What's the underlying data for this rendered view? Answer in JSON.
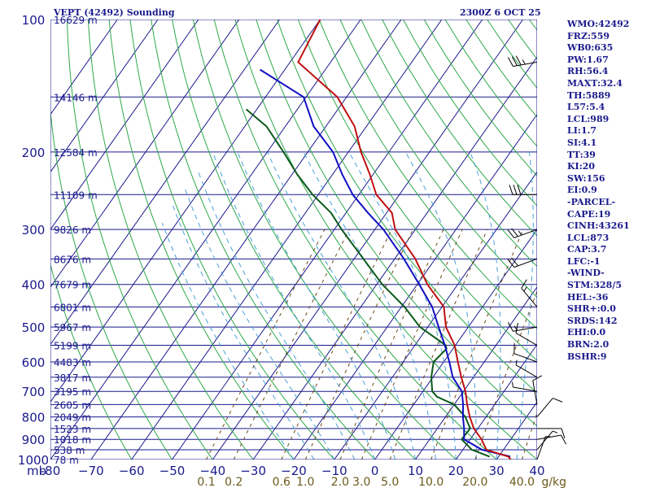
{
  "header": {
    "title": "VEPT (42492) Sounding",
    "time": "2300Z  6 OCT 25"
  },
  "indices": [
    "WMO:42492",
    "FRZ:559",
    "WB0:635",
    "PW:1.67",
    "RH:56.4",
    "MAXT:32.4",
    "TH:5889",
    "L57:5.4",
    "LCL:989",
    "LI:1.7",
    "SI:4.1",
    "TT:39",
    "KI:20",
    "SW:156",
    "EI:0.9",
    "-PARCEL-",
    "CAPE:19",
    "CINH:43261",
    "LCL:873",
    "CAP:3.7",
    "LFC:-1",
    "-WIND-",
    "STM:328/5",
    "HEL:-36",
    "SHR+:0.0",
    "SRDS:142",
    "EHI:0.0",
    "BRN:2.0",
    "BSHR:9"
  ],
  "colors": {
    "grid": "#1a1a8c",
    "isotherm": "#1a1a8c",
    "dry_adiabat": "#2ea84a",
    "moist_adiabat": "#4aa0d8",
    "mixing_ratio": "#6b4a1a",
    "temperature": "#c01010",
    "virtual_temperature": "#1010c0",
    "dewpoint": "#0b5a1a",
    "wind": "#000000",
    "axis_text": "#1a1a8c",
    "mixing_text": "#6b5a1a"
  },
  "chart_data": {
    "type": "skew-t",
    "pressure_unit_label": "mb",
    "pressure_ticks": [
      100,
      200,
      300,
      400,
      500,
      600,
      700,
      800,
      900,
      1000
    ],
    "height_labels": [
      {
        "p": 100,
        "label": "16629 m"
      },
      {
        "p": 150,
        "label": "14146 m"
      },
      {
        "p": 200,
        "label": "12584 m"
      },
      {
        "p": 250,
        "label": "11109 m"
      },
      {
        "p": 300,
        "label": "9826 m"
      },
      {
        "p": 350,
        "label": "8676 m"
      },
      {
        "p": 400,
        "label": "7679 m"
      },
      {
        "p": 450,
        "label": "6801 m"
      },
      {
        "p": 500,
        "label": "5967 m"
      },
      {
        "p": 550,
        "label": "5199 m"
      },
      {
        "p": 600,
        "label": "4483 m"
      },
      {
        "p": 650,
        "label": "3817 m"
      },
      {
        "p": 700,
        "label": "3195 m"
      },
      {
        "p": 750,
        "label": "2605 m"
      },
      {
        "p": 800,
        "label": "2049 m"
      },
      {
        "p": 850,
        "label": "1523 m"
      },
      {
        "p": 900,
        "label": "1018 m"
      },
      {
        "p": 950,
        "label": "538 m"
      },
      {
        "p": 1000,
        "label": "78 m"
      }
    ],
    "temperature_ticks": [
      -80,
      -70,
      -60,
      -50,
      -40,
      -30,
      -20,
      -10,
      0,
      10,
      20,
      30,
      40
    ],
    "temperature_tick_labels": [
      "-80",
      "−70",
      "−60",
      "−50",
      "−40",
      "−30",
      "−20",
      "−10",
      "0",
      "10",
      "20",
      "30",
      "40"
    ],
    "mixing_ratio_labels": [
      {
        "w": 0.1,
        "label": "0.1"
      },
      {
        "w": 0.2,
        "label": "0.2"
      },
      {
        "w": 0.6,
        "label": "0.6"
      },
      {
        "w": 1.0,
        "label": "1.0"
      },
      {
        "w": 2.0,
        "label": "2.0"
      },
      {
        "w": 3.0,
        "label": "3.0"
      },
      {
        "w": 5.0,
        "label": "5.0"
      },
      {
        "w": 10.0,
        "label": "10.0"
      },
      {
        "w": 20.0,
        "label": "20.0"
      },
      {
        "w": 40.0,
        "label": "40.0"
      }
    ],
    "mixing_ratio_unit": "g/kg",
    "skew_deg_per_decade": 76.5,
    "temperature_profile": [
      [
        100,
        -90.0
      ],
      [
        125,
        -88.0
      ],
      [
        150,
        -72.3
      ],
      [
        175,
        -62.9
      ],
      [
        200,
        -56.9
      ],
      [
        225,
        -50.8
      ],
      [
        250,
        -45.7
      ],
      [
        275,
        -38.7
      ],
      [
        300,
        -35.0
      ],
      [
        350,
        -24.9
      ],
      [
        400,
        -17.5
      ],
      [
        450,
        -9.5
      ],
      [
        500,
        -5.5
      ],
      [
        550,
        -0.2
      ],
      [
        600,
        3.5
      ],
      [
        650,
        7.0
      ],
      [
        700,
        10.5
      ],
      [
        750,
        13.2
      ],
      [
        800,
        16.0
      ],
      [
        850,
        19.0
      ],
      [
        900,
        22.8
      ],
      [
        950,
        25.8
      ],
      [
        985,
        32.4
      ],
      [
        1000,
        33.5
      ]
    ],
    "virtual_temperature_profile": [
      [
        130,
        -96.1
      ],
      [
        150,
        -80.6
      ],
      [
        175,
        -73.0
      ],
      [
        200,
        -63.8
      ],
      [
        225,
        -57.6
      ],
      [
        250,
        -51.5
      ],
      [
        275,
        -44.6
      ],
      [
        300,
        -37.9
      ],
      [
        350,
        -27.7
      ],
      [
        400,
        -19.5
      ],
      [
        450,
        -12.4
      ],
      [
        500,
        -7.3
      ],
      [
        550,
        -2.6
      ],
      [
        600,
        1.4
      ],
      [
        650,
        4.9
      ],
      [
        700,
        9.6
      ],
      [
        750,
        12.2
      ],
      [
        800,
        14.3
      ],
      [
        850,
        16.6
      ],
      [
        900,
        18.5
      ],
      [
        950,
        24.7
      ],
      [
        985,
        32.9
      ]
    ],
    "dewpoint_profile": [
      [
        160,
        -92.6
      ],
      [
        175,
        -84.6
      ],
      [
        200,
        -76.0
      ],
      [
        225,
        -68.7
      ],
      [
        250,
        -61.4
      ],
      [
        275,
        -53.7
      ],
      [
        300,
        -48.2
      ],
      [
        350,
        -37.7
      ],
      [
        400,
        -28.6
      ],
      [
        450,
        -19.2
      ],
      [
        500,
        -11.9
      ],
      [
        550,
        -2.4
      ],
      [
        560,
        -1.6
      ],
      [
        600,
        -2.5
      ],
      [
        650,
        -0.4
      ],
      [
        700,
        2.3
      ],
      [
        720,
        4.4
      ],
      [
        750,
        10.0
      ],
      [
        800,
        14.9
      ],
      [
        850,
        18.1
      ],
      [
        900,
        17.9
      ],
      [
        950,
        22.2
      ],
      [
        985,
        27.8
      ]
    ],
    "wind_barbs": [
      {
        "p": 125,
        "dir": 260,
        "speed": 35
      },
      {
        "p": 250,
        "dir": 270,
        "speed": 30
      },
      {
        "p": 300,
        "dir": 250,
        "speed": 25
      },
      {
        "p": 350,
        "dir": 250,
        "speed": 20
      },
      {
        "p": 450,
        "dir": 320,
        "speed": 15
      },
      {
        "p": 500,
        "dir": 260,
        "speed": 15
      },
      {
        "p": 550,
        "dir": 300,
        "speed": 10
      },
      {
        "p": 600,
        "dir": 290,
        "speed": 10
      },
      {
        "p": 650,
        "dir": 300,
        "speed": 5
      },
      {
        "p": 700,
        "dir": 280,
        "speed": 5
      },
      {
        "p": 750,
        "dir": 350,
        "speed": 10
      },
      {
        "p": 800,
        "dir": 40,
        "speed": 10
      },
      {
        "p": 850,
        "dir": 90,
        "speed": 10
      },
      {
        "p": 900,
        "dir": 80,
        "speed": 10
      },
      {
        "p": 950,
        "dir": 40,
        "speed": 5
      },
      {
        "p": 1000,
        "dir": 20,
        "speed": 5
      }
    ]
  }
}
